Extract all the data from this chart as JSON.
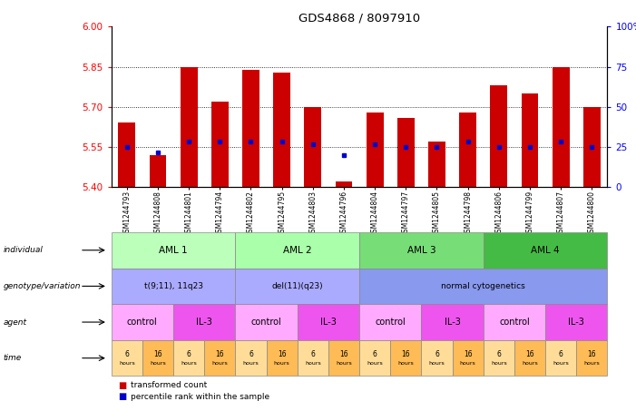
{
  "title": "GDS4868 / 8097910",
  "samples": [
    "GSM1244793",
    "GSM1244808",
    "GSM1244801",
    "GSM1244794",
    "GSM1244802",
    "GSM1244795",
    "GSM1244803",
    "GSM1244796",
    "GSM1244804",
    "GSM1244797",
    "GSM1244805",
    "GSM1244798",
    "GSM1244806",
    "GSM1244799",
    "GSM1244807",
    "GSM1244800"
  ],
  "bar_values": [
    5.64,
    5.52,
    5.85,
    5.72,
    5.84,
    5.83,
    5.7,
    5.42,
    5.68,
    5.66,
    5.57,
    5.68,
    5.78,
    5.75,
    5.85,
    5.7
  ],
  "blue_values": [
    5.55,
    5.53,
    5.57,
    5.57,
    5.57,
    5.57,
    5.56,
    5.52,
    5.56,
    5.55,
    5.55,
    5.57,
    5.55,
    5.55,
    5.57,
    5.55
  ],
  "bar_bottom": 5.4,
  "ylim": [
    5.4,
    6.0
  ],
  "yticks_left": [
    5.4,
    5.55,
    5.7,
    5.85,
    6.0
  ],
  "yticks_right": [
    0,
    25,
    50,
    75,
    100
  ],
  "ytick_right_labels": [
    "0",
    "25",
    "50",
    "75",
    "100%"
  ],
  "bar_color": "#cc0000",
  "blue_color": "#0000cc",
  "gridline_y": [
    5.55,
    5.7,
    5.85
  ],
  "row_labels": [
    "individual",
    "genotype/variation",
    "agent",
    "time"
  ],
  "ind_data": [
    {
      "label": "AML 1",
      "span": [
        0,
        3
      ],
      "color": "#bbffbb"
    },
    {
      "label": "AML 2",
      "span": [
        4,
        7
      ],
      "color": "#aaffaa"
    },
    {
      "label": "AML 3",
      "span": [
        8,
        11
      ],
      "color": "#77dd77"
    },
    {
      "label": "AML 4",
      "span": [
        12,
        15
      ],
      "color": "#44bb44"
    }
  ],
  "geno_data": [
    {
      "label": "t(9;11), 11q23",
      "span": [
        0,
        3
      ],
      "color": "#aaaaff"
    },
    {
      "label": "del(11)(q23)",
      "span": [
        4,
        7
      ],
      "color": "#aaaaff"
    },
    {
      "label": "normal cytogenetics",
      "span": [
        8,
        15
      ],
      "color": "#8899ee"
    }
  ],
  "agent_data": [
    {
      "label": "control",
      "span": [
        0,
        1
      ],
      "color": "#ffaaff"
    },
    {
      "label": "IL-3",
      "span": [
        2,
        3
      ],
      "color": "#ee55ee"
    },
    {
      "label": "control",
      "span": [
        4,
        5
      ],
      "color": "#ffaaff"
    },
    {
      "label": "IL-3",
      "span": [
        6,
        7
      ],
      "color": "#ee55ee"
    },
    {
      "label": "control",
      "span": [
        8,
        9
      ],
      "color": "#ffaaff"
    },
    {
      "label": "IL-3",
      "span": [
        10,
        11
      ],
      "color": "#ee55ee"
    },
    {
      "label": "control",
      "span": [
        12,
        13
      ],
      "color": "#ffaaff"
    },
    {
      "label": "IL-3",
      "span": [
        14,
        15
      ],
      "color": "#ee55ee"
    }
  ],
  "time_colors": [
    "#ffdd99",
    "#ffbb55"
  ],
  "legend_items": [
    {
      "label": "transformed count",
      "color": "#cc0000"
    },
    {
      "label": "percentile rank within the sample",
      "color": "#0000cc"
    }
  ]
}
